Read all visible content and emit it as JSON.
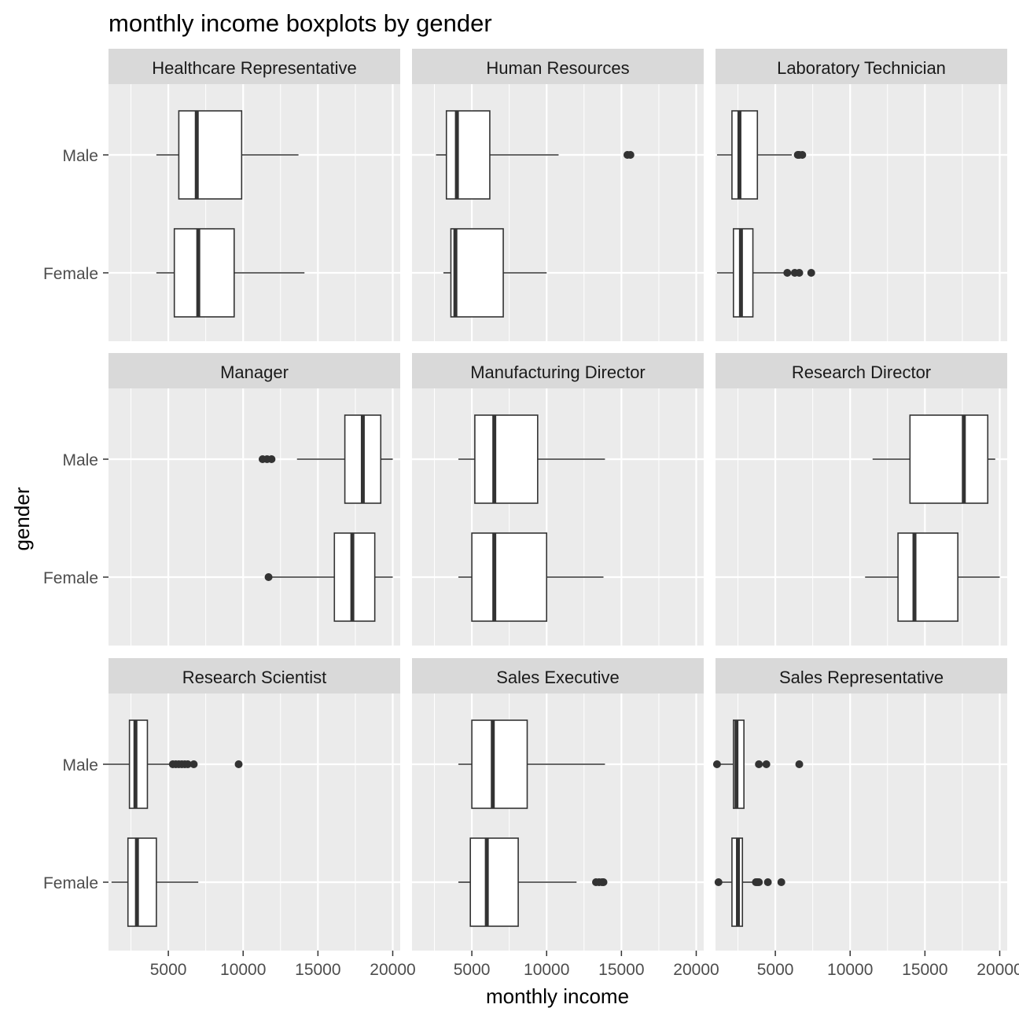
{
  "chart_data": {
    "type": "boxplot",
    "title": "monthly income boxplots by gender",
    "xlabel": "monthly income",
    "ylabel": "gender",
    "xlim": [
      1000,
      20500
    ],
    "x_ticks": [
      5000,
      10000,
      15000,
      20000
    ],
    "x_minor_ticks": [
      2500,
      7500,
      12500,
      17500
    ],
    "categories": [
      "Male",
      "Female"
    ],
    "grid": true,
    "colors": {
      "panel_bg": "#ebebeb",
      "strip_bg": "#d9d9d9",
      "grid": "#ffffff",
      "box_fill": "#ffffff",
      "box_line": "#333333",
      "outlier": "#333333"
    },
    "panels": [
      {
        "name": "Healthcare Representative",
        "groups": [
          {
            "label": "Male",
            "min": 4200,
            "q1": 5700,
            "median": 6900,
            "q3": 9900,
            "max": 13700,
            "outliers": []
          },
          {
            "label": "Female",
            "min": 4200,
            "q1": 5400,
            "median": 7000,
            "q3": 9400,
            "max": 14100,
            "outliers": []
          }
        ]
      },
      {
        "name": "Human Resources",
        "groups": [
          {
            "label": "Male",
            "min": 2600,
            "q1": 3300,
            "median": 4000,
            "q3": 6200,
            "max": 10800,
            "outliers": [
              15400,
              15600
            ]
          },
          {
            "label": "Female",
            "min": 3100,
            "q1": 3600,
            "median": 3900,
            "q3": 7100,
            "max": 10000,
            "outliers": []
          }
        ]
      },
      {
        "name": "Laboratory Technician",
        "groups": [
          {
            "label": "Male",
            "min": 1100,
            "q1": 2100,
            "median": 2600,
            "q3": 3800,
            "max": 6100,
            "outliers": [
              6500,
              6600,
              6800
            ]
          },
          {
            "label": "Female",
            "min": 1100,
            "q1": 2200,
            "median": 2700,
            "q3": 3500,
            "max": 5700,
            "outliers": [
              5800,
              6300,
              6600,
              7400
            ]
          }
        ]
      },
      {
        "name": "Manager",
        "groups": [
          {
            "label": "Male",
            "min": 13600,
            "q1": 16800,
            "median": 18000,
            "q3": 19200,
            "max": 20000,
            "outliers": [
              11300,
              11600,
              11900
            ]
          },
          {
            "label": "Female",
            "min": 11700,
            "q1": 16100,
            "median": 17300,
            "q3": 18800,
            "max": 20000,
            "outliers": [
              11700
            ]
          }
        ]
      },
      {
        "name": "Manufacturing Director",
        "groups": [
          {
            "label": "Male",
            "min": 4100,
            "q1": 5200,
            "median": 6500,
            "q3": 9400,
            "max": 13900,
            "outliers": []
          },
          {
            "label": "Female",
            "min": 4100,
            "q1": 5000,
            "median": 6500,
            "q3": 10000,
            "max": 13800,
            "outliers": []
          }
        ]
      },
      {
        "name": "Research Director",
        "groups": [
          {
            "label": "Male",
            "min": 11500,
            "q1": 14000,
            "median": 17600,
            "q3": 19200,
            "max": 19700,
            "outliers": []
          },
          {
            "label": "Female",
            "min": 11000,
            "q1": 13200,
            "median": 14300,
            "q3": 17200,
            "max": 20000,
            "outliers": []
          }
        ]
      },
      {
        "name": "Research Scientist",
        "groups": [
          {
            "label": "Male",
            "min": 1000,
            "q1": 2400,
            "median": 2800,
            "q3": 3600,
            "max": 5100,
            "outliers": [
              5300,
              5500,
              5700,
              5900,
              6100,
              6300,
              6700,
              9700
            ]
          },
          {
            "label": "Female",
            "min": 1200,
            "q1": 2300,
            "median": 2900,
            "q3": 4200,
            "max": 7000,
            "outliers": []
          }
        ]
      },
      {
        "name": "Sales Executive",
        "groups": [
          {
            "label": "Male",
            "min": 4100,
            "q1": 5000,
            "median": 6400,
            "q3": 8700,
            "max": 13900,
            "outliers": []
          },
          {
            "label": "Female",
            "min": 4100,
            "q1": 4900,
            "median": 6000,
            "q3": 8100,
            "max": 12000,
            "outliers": [
              13300,
              13500,
              13700,
              13800
            ]
          }
        ]
      },
      {
        "name": "Sales Representative",
        "groups": [
          {
            "label": "Male",
            "min": 1100,
            "q1": 2200,
            "median": 2400,
            "q3": 2900,
            "max": 2900,
            "outliers": [
              1100,
              3900,
              4400,
              6600
            ]
          },
          {
            "label": "Female",
            "min": 1200,
            "q1": 2100,
            "median": 2500,
            "q3": 2800,
            "max": 3500,
            "outliers": [
              1200,
              3700,
              3800,
              3900,
              4500,
              5400
            ]
          }
        ]
      }
    ]
  }
}
